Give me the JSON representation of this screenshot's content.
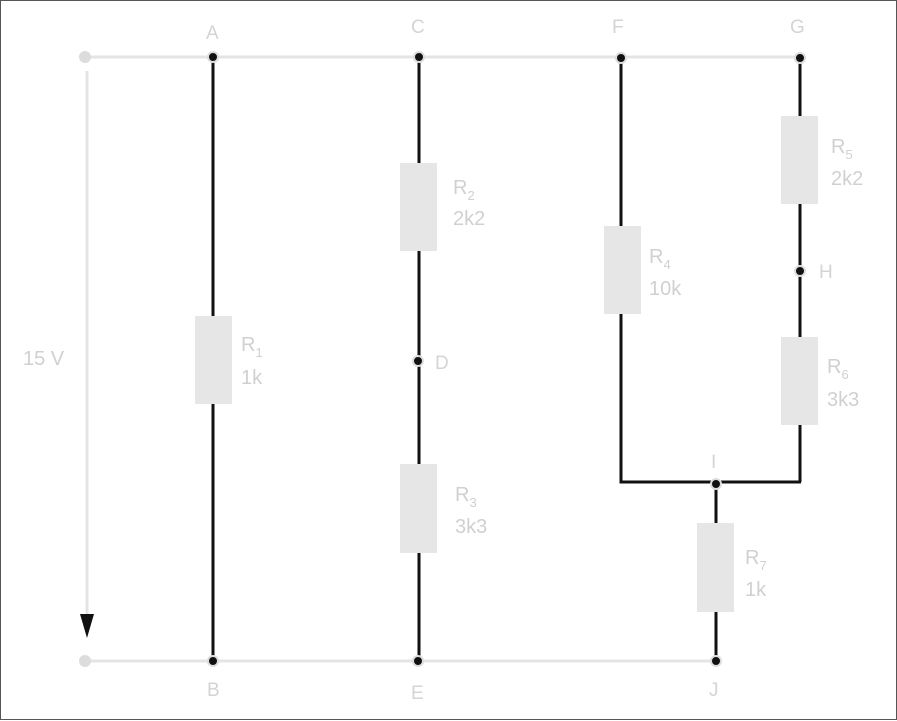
{
  "source": {
    "voltage": "15 V"
  },
  "nodes": {
    "A": "A",
    "B": "B",
    "C": "C",
    "D": "D",
    "E": "E",
    "F": "F",
    "G": "G",
    "H": "H",
    "I": "I",
    "J": "J"
  },
  "resistors": [
    {
      "name": "R",
      "sub": "1",
      "value": "1k"
    },
    {
      "name": "R",
      "sub": "2",
      "value": "2k2"
    },
    {
      "name": "R",
      "sub": "3",
      "value": "3k3"
    },
    {
      "name": "R",
      "sub": "4",
      "value": "10k"
    },
    {
      "name": "R",
      "sub": "5",
      "value": "2k2"
    },
    {
      "name": "R",
      "sub": "6",
      "value": "3k3"
    },
    {
      "name": "R",
      "sub": "7",
      "value": "1k"
    }
  ],
  "colors": {
    "wire_active": "#111111",
    "wire_rail": "#e4e4e4",
    "resistor_fill": "#e6e6e6",
    "label": "#d0d0d0"
  }
}
